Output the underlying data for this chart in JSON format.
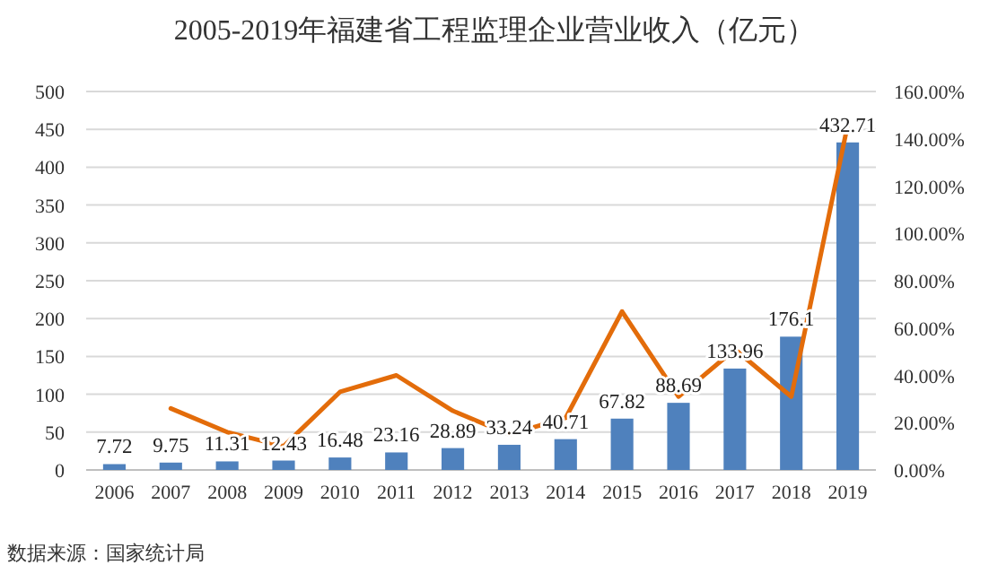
{
  "chart_data": {
    "type": "bar",
    "title": "2005-2019年福建省工程监理企业营业收入（亿元）",
    "categories": [
      "2006",
      "2007",
      "2008",
      "2009",
      "2010",
      "2011",
      "2012",
      "2013",
      "2014",
      "2015",
      "2016",
      "2017",
      "2018",
      "2019"
    ],
    "series": [
      {
        "color": "#4f81bd",
        "values": [
          7.72,
          9.75,
          11.31,
          12.43,
          16.48,
          23.16,
          28.89,
          33.24,
          40.71,
          67.82,
          88.69,
          133.96,
          176.1,
          432.71
        ],
        "data_labels": true
      },
      {
        "type": "line",
        "axis": "y2",
        "color": "#e36c0a",
        "values": [
          null,
          26,
          16,
          10,
          33,
          40,
          25,
          15,
          22,
          67,
          31,
          51,
          31,
          146
        ]
      }
    ],
    "ylim": [
      0,
      500
    ],
    "yticks": [
      0,
      50,
      100,
      150,
      200,
      250,
      300,
      350,
      400,
      450,
      500
    ],
    "y2lim": [
      0,
      160
    ],
    "y2ticks": [
      {
        "value": 0,
        "label": "0.00%"
      },
      {
        "value": 20,
        "label": "20.00%"
      },
      {
        "value": 40,
        "label": "40.00%"
      },
      {
        "value": 60,
        "label": "60.00%"
      },
      {
        "value": 80,
        "label": "80.00%"
      },
      {
        "value": 100,
        "label": "100.00%"
      },
      {
        "value": 120,
        "label": "120.00%"
      },
      {
        "value": 140,
        "label": "140.00%"
      },
      {
        "value": 160,
        "label": "160.00%"
      }
    ],
    "grid": "y",
    "line_style": "solid",
    "marker": "none",
    "annotations": [
      "数据来源：国家统计局"
    ]
  }
}
